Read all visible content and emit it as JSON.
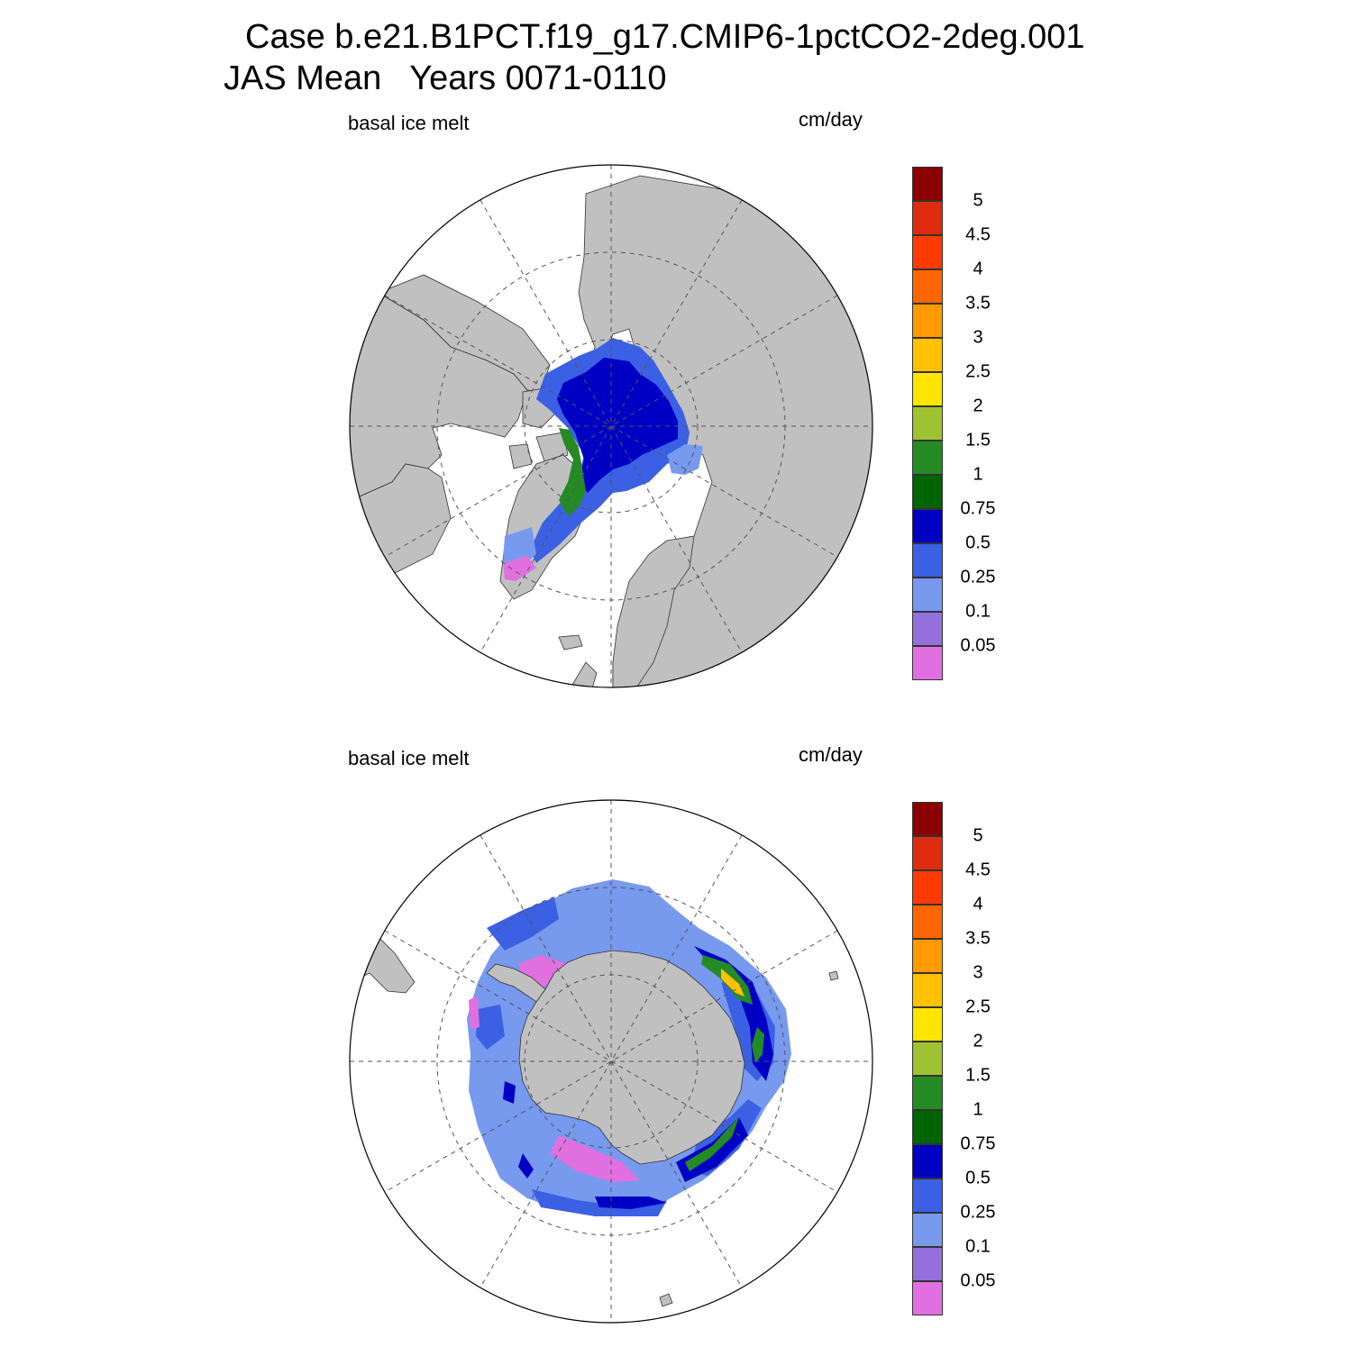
{
  "title": {
    "line1": "Case b.e21.B1PCT.f19_g17.CMIP6-1pctCO2-2deg.001",
    "line2": "JAS Mean   Years 0071-0110"
  },
  "panels": [
    {
      "id": "arctic",
      "variable_label": "basal ice melt",
      "units_label": "cm/day",
      "hemisphere": "north"
    },
    {
      "id": "antarctic",
      "variable_label": "basal ice melt",
      "units_label": "cm/day",
      "hemisphere": "south"
    }
  ],
  "colorbar": {
    "levels": [
      "5",
      "4.5",
      "4",
      "3.5",
      "3",
      "2.5",
      "2",
      "1.5",
      "1",
      "0.75",
      "0.5",
      "0.25",
      "0.1",
      "0.05"
    ],
    "colors_top_to_bottom": [
      "#8b0000",
      "#dd2c0f",
      "#ff3a00",
      "#ff6600",
      "#ff9a00",
      "#ffc100",
      "#ffe500",
      "#9ec232",
      "#248b24",
      "#006400",
      "#0000c4",
      "#3b60e4",
      "#7799ee",
      "#9370db",
      "#e070e0"
    ]
  },
  "colors": {
    "land": "#c0c0c0",
    "ocean": "#ffffff",
    "grid": "#555555"
  }
}
